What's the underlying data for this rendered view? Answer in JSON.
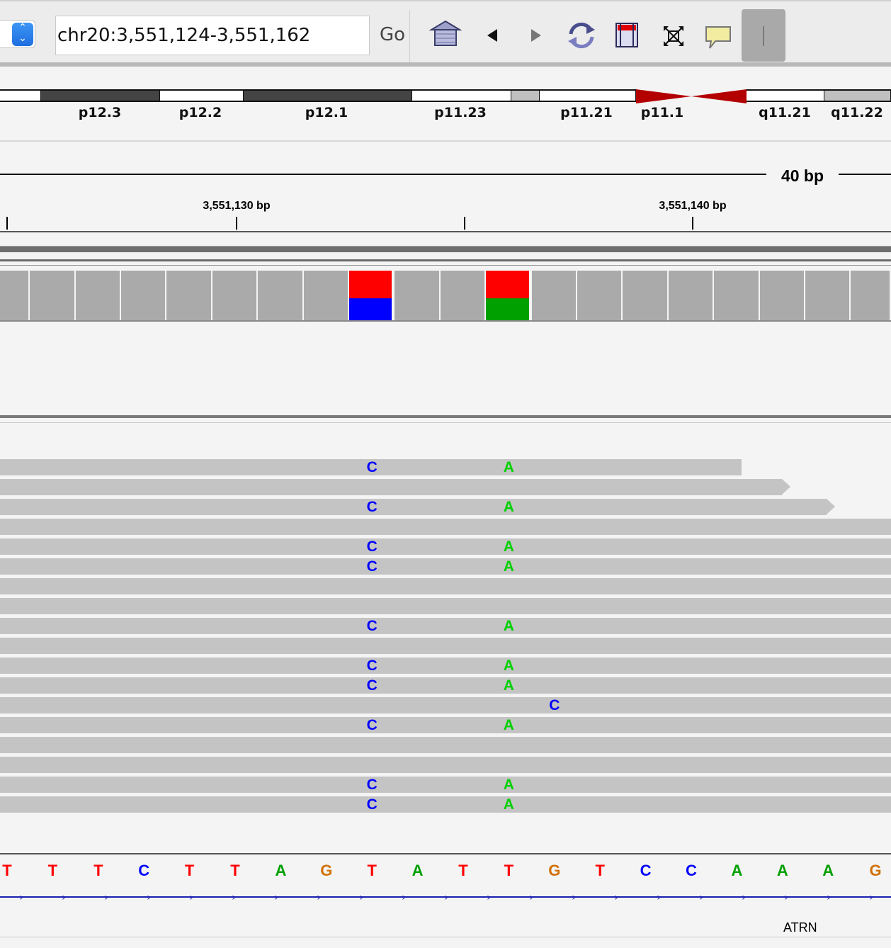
{
  "toolbar": {
    "locus": "chr20:3,551,124-3,551,162",
    "go_label": "Go",
    "select_arrows": "⌃⌄",
    "icons": [
      "home-icon",
      "back-arrow-icon",
      "forward-arrow-icon",
      "refresh-icon",
      "region-of-interest-icon",
      "resize-to-window-icon",
      "popup-info-icon",
      "ruler-line-icon"
    ]
  },
  "ideogram": {
    "bands": [
      {
        "label": "",
        "color": "#ffffff"
      },
      {
        "label": "p12.3",
        "color": "#444444"
      },
      {
        "label": "p12.2",
        "color": "#ffffff"
      },
      {
        "label": "p12.1",
        "color": "#444444"
      },
      {
        "label": "p11.23",
        "color": "#ffffff"
      },
      {
        "label": "",
        "color": "#c0c0c0"
      },
      {
        "label": "p11.21",
        "color": "#ffffff"
      },
      {
        "label": "p11.1",
        "color": "#b30000"
      },
      {
        "label": "",
        "color": "#b30000"
      },
      {
        "label": "q11.21",
        "color": "#ffffff"
      },
      {
        "label": "q11.22",
        "color": "#c0c0c0"
      }
    ]
  },
  "ruler": {
    "span": "40 bp",
    "ticks": [
      "3,551,130 bp",
      "3,551,140 bp"
    ]
  },
  "coverage": {
    "colors": {
      "A": "#00a000",
      "C": "#0000ff",
      "G": "#d17105",
      "T": "#ff0000",
      "bar": "#aaaaaa"
    },
    "columns": [
      {
        "mix": null
      },
      {
        "mix": null
      },
      {
        "mix": null
      },
      {
        "mix": null
      },
      {
        "mix": null
      },
      {
        "mix": null
      },
      {
        "mix": null
      },
      {
        "mix": null
      },
      {
        "mix": [
          [
            "T",
            0.55
          ],
          [
            "C",
            0.45
          ]
        ]
      },
      {
        "mix": null
      },
      {
        "mix": null
      },
      {
        "mix": [
          [
            "T",
            0.55
          ],
          [
            "A",
            0.45
          ]
        ]
      },
      {
        "mix": null
      },
      {
        "mix": null
      },
      {
        "mix": null
      },
      {
        "mix": null
      },
      {
        "mix": null
      },
      {
        "mix": null
      },
      {
        "mix": null
      },
      {
        "mix": null
      }
    ]
  },
  "reads": {
    "mismatch_colors": {
      "C": "#0000ff",
      "A": "#00d000"
    },
    "rows": [
      {
        "end": 33.3,
        "arrow": false,
        "mm": [
          [
            "C",
            8
          ],
          [
            "A",
            11
          ]
        ]
      },
      {
        "end": 35.5,
        "arrow": true,
        "mm": []
      },
      {
        "end": 37.5,
        "arrow": true,
        "mm": [
          [
            "C",
            8
          ],
          [
            "A",
            11
          ]
        ]
      },
      {
        "end": 40,
        "arrow": false,
        "mm": []
      },
      {
        "end": 40,
        "arrow": false,
        "mm": [
          [
            "C",
            8
          ],
          [
            "A",
            11
          ]
        ]
      },
      {
        "end": 40,
        "arrow": false,
        "mm": [
          [
            "C",
            8
          ],
          [
            "A",
            11
          ]
        ]
      },
      {
        "end": 40,
        "arrow": false,
        "mm": []
      },
      {
        "end": 40,
        "arrow": false,
        "mm": []
      },
      {
        "end": 40,
        "arrow": false,
        "mm": [
          [
            "C",
            8
          ],
          [
            "A",
            11
          ]
        ]
      },
      {
        "end": 40,
        "arrow": false,
        "mm": []
      },
      {
        "end": 40,
        "arrow": false,
        "mm": [
          [
            "C",
            8
          ],
          [
            "A",
            11
          ]
        ]
      },
      {
        "end": 40,
        "arrow": false,
        "mm": [
          [
            "C",
            8
          ],
          [
            "A",
            11
          ]
        ]
      },
      {
        "end": 40,
        "arrow": false,
        "mm": [
          [
            "C",
            12
          ]
        ]
      },
      {
        "end": 40,
        "arrow": false,
        "mm": [
          [
            "C",
            8
          ],
          [
            "A",
            11
          ]
        ]
      },
      {
        "end": 40,
        "arrow": false,
        "mm": []
      },
      {
        "end": 40,
        "arrow": false,
        "mm": []
      },
      {
        "end": 40,
        "arrow": false,
        "mm": [
          [
            "C",
            8
          ],
          [
            "A",
            11
          ]
        ]
      },
      {
        "end": 40,
        "arrow": false,
        "mm": [
          [
            "C",
            8
          ],
          [
            "A",
            11
          ]
        ]
      }
    ]
  },
  "sequence": {
    "bases": [
      "T",
      "T",
      "T",
      "C",
      "T",
      "T",
      "A",
      "G",
      "T",
      "A",
      "T",
      "T",
      "G",
      "T",
      "C",
      "C",
      "A",
      "A",
      "A",
      "G"
    ],
    "colors": {
      "A": "#00a000",
      "C": "#0000ff",
      "G": "#d17105",
      "T": "#ff0000"
    }
  },
  "gene": {
    "name": "ATRN",
    "strand_glyph": "›"
  }
}
